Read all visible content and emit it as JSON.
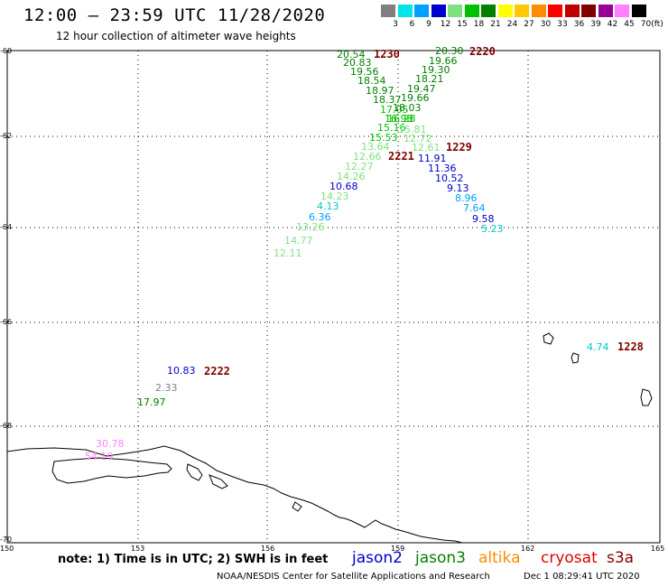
{
  "header": {
    "title": "12:00 – 23:59 UTC 11/28/2020",
    "subtitle": "12 hour collection of altimeter wave heights"
  },
  "color_scale": {
    "unit": "(ft)",
    "stops": [
      {
        "label": "3",
        "color": "#808080"
      },
      {
        "label": "6",
        "color": "#00e5e5"
      },
      {
        "label": "9",
        "color": "#00a0ff"
      },
      {
        "label": "12",
        "color": "#0000cc"
      },
      {
        "label": "15",
        "color": "#80e080"
      },
      {
        "label": "18",
        "color": "#00c000"
      },
      {
        "label": "21",
        "color": "#008000"
      },
      {
        "label": "24",
        "color": "#ffff00"
      },
      {
        "label": "27",
        "color": "#ffc800"
      },
      {
        "label": "30",
        "color": "#ff8c00"
      },
      {
        "label": "33",
        "color": "#ff0000"
      },
      {
        "label": "36",
        "color": "#c00000"
      },
      {
        "label": "39",
        "color": "#800000"
      },
      {
        "label": "42",
        "color": "#9a0096"
      },
      {
        "label": "45",
        "color": "#ff80ff"
      },
      {
        "label": "70",
        "color": "#000000"
      }
    ]
  },
  "axes": {
    "lat_labels": [
      "-60",
      "-62",
      "-64",
      "-66",
      "-68",
      "-70"
    ],
    "lon_labels": [
      "150",
      "153",
      "156",
      "159",
      "162",
      "165"
    ]
  },
  "observations": [
    {
      "v": "20.54",
      "c": "#008000"
    },
    {
      "v": "20.83",
      "c": "#008000"
    },
    {
      "v": "19.56",
      "c": "#008000"
    },
    {
      "v": "18.54",
      "c": "#008000"
    },
    {
      "v": "18.97",
      "c": "#008000"
    },
    {
      "v": "18.37",
      "c": "#008000"
    },
    {
      "v": "17.05",
      "c": "#00c000"
    },
    {
      "v": "16.98",
      "c": "#00c000"
    },
    {
      "v": "15.16",
      "c": "#00c000"
    },
    {
      "v": "15.53",
      "c": "#00c000"
    },
    {
      "v": "13.64",
      "c": "#80e080"
    },
    {
      "v": "12.66",
      "c": "#80e080"
    },
    {
      "v": "12.27",
      "c": "#80e080"
    },
    {
      "v": "14.26",
      "c": "#80e080"
    },
    {
      "v": "10.68",
      "c": "#0000cc"
    },
    {
      "v": "14.23",
      "c": "#80e080"
    },
    {
      "v": "4.13",
      "c": "#00c8c8"
    },
    {
      "v": "6.36",
      "c": "#00a0ff"
    },
    {
      "v": "13.26",
      "c": "#80e080"
    },
    {
      "v": "14.77",
      "c": "#80e080"
    },
    {
      "v": "12.11",
      "c": "#80e080"
    },
    {
      "v": "20.30",
      "c": "#008000"
    },
    {
      "v": "19.66",
      "c": "#008000"
    },
    {
      "v": "19.30",
      "c": "#008000"
    },
    {
      "v": "18.21",
      "c": "#008000"
    },
    {
      "v": "19.47",
      "c": "#008000"
    },
    {
      "v": "19.66",
      "c": "#008000"
    },
    {
      "v": "18.03",
      "c": "#008000"
    },
    {
      "v": "16.28",
      "c": "#00c000"
    },
    {
      "v": "15.81",
      "c": "#80e080"
    },
    {
      "v": "12.72",
      "c": "#80e080"
    },
    {
      "v": "12.61",
      "c": "#80e080"
    },
    {
      "v": "11.91",
      "c": "#0000cc"
    },
    {
      "v": "11.36",
      "c": "#0000cc"
    },
    {
      "v": "10.52",
      "c": "#0000cc"
    },
    {
      "v": "9.13",
      "c": "#0000cc"
    },
    {
      "v": "8.96",
      "c": "#00a0ff"
    },
    {
      "v": "7.64",
      "c": "#00a0ff"
    },
    {
      "v": "9.58",
      "c": "#0000cc"
    },
    {
      "v": "5.23",
      "c": "#00c8c8"
    },
    {
      "v": "10.83",
      "c": "#0000cc"
    },
    {
      "v": "2.33",
      "c": "#808080"
    },
    {
      "v": "17.97",
      "c": "#008000"
    },
    {
      "v": "4.74",
      "c": "#00c8c8"
    },
    {
      "v": "30.78",
      "c": "#ff80ff"
    },
    {
      "v": "54.19",
      "c": "#ff80ff"
    }
  ],
  "pass_times": [
    "1230",
    "2220",
    "1229",
    "2221",
    "2222",
    "1228"
  ],
  "footer": {
    "note": "note:  1) Time is in UTC;  2) SWH is in feet",
    "legend": [
      {
        "name": "jason2",
        "color": "#0000cc"
      },
      {
        "name": "jason3",
        "color": "#008000"
      },
      {
        "name": "altika",
        "color": "#ff8c00"
      },
      {
        "name": "cryosat",
        "color": "#e00000"
      },
      {
        "name": "s3a",
        "color": "#800000"
      }
    ],
    "credit": "NOAA/NESDIS Center for Satellite Applications and Research",
    "timestamp": "Dec  1 08:29:41 UTC 2020"
  }
}
